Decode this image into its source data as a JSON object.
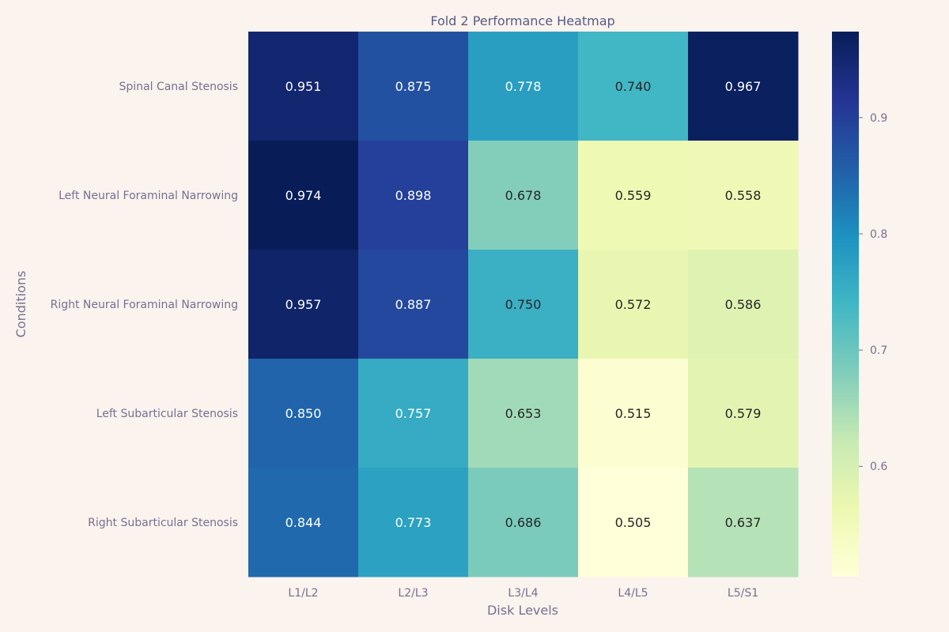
{
  "chart_data": {
    "type": "heatmap",
    "title": "Fold 2 Performance Heatmap",
    "xlabel": "Disk Levels",
    "ylabel": "Conditions",
    "x_categories": [
      "L1/L2",
      "L2/L3",
      "L3/L4",
      "L4/L5",
      "L5/S1"
    ],
    "y_categories": [
      "Spinal Canal Stenosis",
      "Left Neural Foraminal Narrowing",
      "Right Neural Foraminal Narrowing",
      "Left Subarticular Stenosis",
      "Right Subarticular Stenosis"
    ],
    "values": [
      [
        0.951,
        0.875,
        0.778,
        0.74,
        0.967
      ],
      [
        0.974,
        0.898,
        0.678,
        0.559,
        0.558
      ],
      [
        0.957,
        0.887,
        0.75,
        0.572,
        0.586
      ],
      [
        0.85,
        0.757,
        0.653,
        0.515,
        0.579
      ],
      [
        0.844,
        0.773,
        0.686,
        0.505,
        0.637
      ]
    ],
    "value_labels": [
      [
        "0.951",
        "0.875",
        "0.778",
        "0.740",
        "0.967"
      ],
      [
        "0.974",
        "0.898",
        "0.678",
        "0.559",
        "0.558"
      ],
      [
        "0.957",
        "0.887",
        "0.750",
        "0.572",
        "0.586"
      ],
      [
        "0.850",
        "0.757",
        "0.653",
        "0.515",
        "0.579"
      ],
      [
        "0.844",
        "0.773",
        "0.686",
        "0.505",
        "0.637"
      ]
    ],
    "colormap": "YlGnBu",
    "colorbar": {
      "range": [
        0.505,
        0.974
      ],
      "ticks": [
        0.6,
        0.7,
        0.8,
        0.9
      ],
      "tick_labels": [
        "0.6",
        "0.7",
        "0.8",
        "0.9"
      ],
      "placement": "right"
    },
    "colors": {
      "background": "#faf3ee",
      "text_dark": "#262626",
      "text_light": "#ffffff"
    },
    "grid": false
  }
}
